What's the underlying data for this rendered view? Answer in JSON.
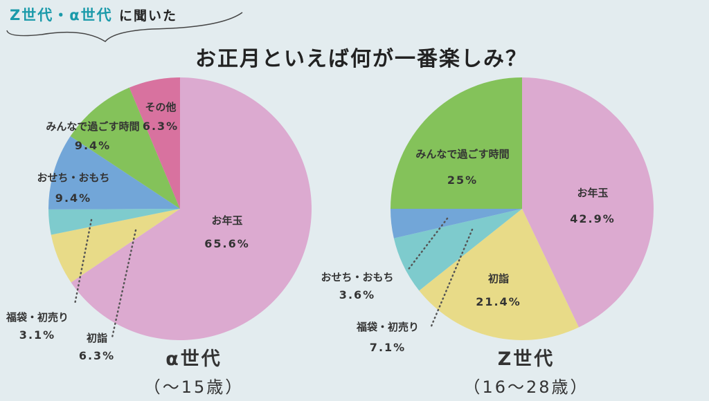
{
  "header": {
    "tag_highlight": "Z世代・α世代",
    "tag_rest": "に聞いた"
  },
  "title": "お正月といえば何が一番楽しみ？",
  "colors": {
    "お年玉": "#dcaad0",
    "初詣": "#e8db88",
    "福袋・初売り": "#7ecbcd",
    "おせち・おもち": "#72a6d8",
    "みんなで過ごす時間": "#84c25a",
    "その他": "#d8729f"
  },
  "chart_data": [
    {
      "type": "pie",
      "title": "α世代",
      "subtitle": "（〜15歳）",
      "labels": [
        "お年玉",
        "初詣",
        "福袋・初売り",
        "おせち・おもち",
        "みんなで過ごす時間",
        "その他"
      ],
      "values": [
        65.6,
        6.3,
        3.1,
        9.4,
        9.4,
        6.3
      ],
      "value_labels": [
        "65.6%",
        "6.3%",
        "3.1%",
        "9.4%",
        "9.4%",
        "6.3%"
      ]
    },
    {
      "type": "pie",
      "title": "Z世代",
      "subtitle": "（16〜28歳）",
      "labels": [
        "お年玉",
        "初詣",
        "福袋・初売り",
        "おせち・おもち",
        "みんなで過ごす時間"
      ],
      "values": [
        42.9,
        21.4,
        7.1,
        3.6,
        25
      ],
      "value_labels": [
        "42.9%",
        "21.4%",
        "7.1%",
        "3.6%",
        "25%"
      ]
    }
  ]
}
